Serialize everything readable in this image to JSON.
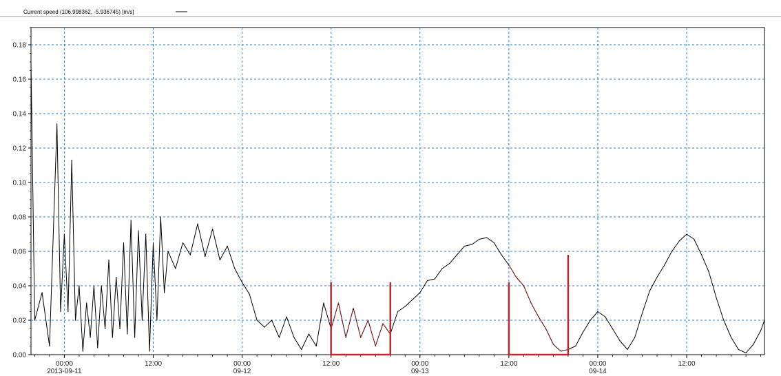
{
  "legend": {
    "label": "Current speed (106.998362, -5.936745) [m/s]",
    "line_color": "#000000"
  },
  "colors": {
    "series": "#000000",
    "highlight": "#c0282d",
    "grid": "#2a7fd4",
    "axis": "#000000"
  },
  "chart_data": {
    "type": "line",
    "title": "",
    "xlabel": "",
    "ylabel": "",
    "grid": true,
    "legend_placement": "top-left",
    "xlim": [
      "2013-09-10 19:30",
      "2013-09-14 22:30"
    ],
    "ylim": [
      0,
      0.19
    ],
    "y_ticks": [
      0.0,
      0.02,
      0.04,
      0.06,
      0.08,
      0.1,
      0.12,
      0.14,
      0.16,
      0.18
    ],
    "y_tick_labels": [
      "0.00",
      "0.02",
      "0.04",
      "0.06",
      "0.08",
      "0.10",
      "0.12",
      "0.14",
      "0.16",
      "0.18"
    ],
    "x_ticks": [
      {
        "t": "2013-09-11 00:00",
        "line1": "00:00",
        "line2": "2013-09-11"
      },
      {
        "t": "2013-09-11 12:00",
        "line1": "12:00",
        "line2": ""
      },
      {
        "t": "2013-09-12 00:00",
        "line1": "00:00",
        "line2": "09-12"
      },
      {
        "t": "2013-09-12 12:00",
        "line1": "12:00",
        "line2": ""
      },
      {
        "t": "2013-09-13 00:00",
        "line1": "00:00",
        "line2": "09-13"
      },
      {
        "t": "2013-09-13 12:00",
        "line1": "12:00",
        "line2": ""
      },
      {
        "t": "2013-09-14 00:00",
        "line1": "00:00",
        "line2": "09-14"
      },
      {
        "t": "2013-09-14 12:00",
        "line1": "12:00",
        "line2": ""
      }
    ],
    "series": [
      {
        "color": "#000000",
        "points": [
          [
            "2013-09-10 19:30",
            0.17
          ],
          [
            "2013-09-10 20:00",
            0.02
          ],
          [
            "2013-09-10 21:00",
            0.036
          ],
          [
            "2013-09-10 22:00",
            0.005
          ],
          [
            "2013-09-10 23:00",
            0.134
          ],
          [
            "2013-09-10 23:30",
            0.025
          ],
          [
            "2013-09-11 00:00",
            0.07
          ],
          [
            "2013-09-11 00:30",
            0.025
          ],
          [
            "2013-09-11 01:00",
            0.113
          ],
          [
            "2013-09-11 01:30",
            0.02
          ],
          [
            "2013-09-11 02:00",
            0.04
          ],
          [
            "2013-09-11 02:30",
            0.002
          ],
          [
            "2013-09-11 03:00",
            0.03
          ],
          [
            "2013-09-11 03:30",
            0.01
          ],
          [
            "2013-09-11 04:00",
            0.04
          ],
          [
            "2013-09-11 04:30",
            0.004
          ],
          [
            "2013-09-11 05:00",
            0.04
          ],
          [
            "2013-09-11 05:30",
            0.015
          ],
          [
            "2013-09-11 06:00",
            0.055
          ],
          [
            "2013-09-11 06:30",
            0.01
          ],
          [
            "2013-09-11 07:00",
            0.045
          ],
          [
            "2013-09-11 07:30",
            0.015
          ],
          [
            "2013-09-11 08:00",
            0.065
          ],
          [
            "2013-09-11 08:30",
            0.012
          ],
          [
            "2013-09-11 09:00",
            0.078
          ],
          [
            "2013-09-11 09:30",
            0.01
          ],
          [
            "2013-09-11 10:00",
            0.072
          ],
          [
            "2013-09-11 10:30",
            0.02
          ],
          [
            "2013-09-11 11:00",
            0.07
          ],
          [
            "2013-09-11 11:30",
            0.002
          ],
          [
            "2013-09-11 12:00",
            0.065
          ],
          [
            "2013-09-11 12:30",
            0.02
          ],
          [
            "2013-09-11 13:00",
            0.08
          ],
          [
            "2013-09-11 13:30",
            0.036
          ],
          [
            "2013-09-11 14:00",
            0.06
          ],
          [
            "2013-09-11 15:00",
            0.05
          ],
          [
            "2013-09-11 16:00",
            0.065
          ],
          [
            "2013-09-11 17:00",
            0.058
          ],
          [
            "2013-09-11 18:00",
            0.076
          ],
          [
            "2013-09-11 19:00",
            0.057
          ],
          [
            "2013-09-11 20:00",
            0.073
          ],
          [
            "2013-09-11 21:00",
            0.055
          ],
          [
            "2013-09-11 22:00",
            0.063
          ],
          [
            "2013-09-11 23:00",
            0.05
          ],
          [
            "2013-09-12 00:00",
            0.042
          ],
          [
            "2013-09-12 01:00",
            0.035
          ],
          [
            "2013-09-12 02:00",
            0.02
          ],
          [
            "2013-09-12 03:00",
            0.016
          ],
          [
            "2013-09-12 04:00",
            0.02
          ],
          [
            "2013-09-12 05:00",
            0.01
          ],
          [
            "2013-09-12 06:00",
            0.022
          ],
          [
            "2013-09-12 07:00",
            0.01
          ],
          [
            "2013-09-12 08:00",
            0.003
          ],
          [
            "2013-09-12 09:00",
            0.012
          ],
          [
            "2013-09-12 10:00",
            0.005
          ],
          [
            "2013-09-12 11:00",
            0.03
          ],
          [
            "2013-09-12 12:00",
            0.015
          ],
          [
            "2013-09-12 13:00",
            0.03
          ],
          [
            "2013-09-12 14:00",
            0.01
          ],
          [
            "2013-09-12 15:00",
            0.027
          ],
          [
            "2013-09-12 16:00",
            0.01
          ],
          [
            "2013-09-12 17:00",
            0.02
          ],
          [
            "2013-09-12 18:00",
            0.005
          ],
          [
            "2013-09-12 19:00",
            0.018
          ],
          [
            "2013-09-12 20:00",
            0.012
          ],
          [
            "2013-09-12 21:00",
            0.025
          ],
          [
            "2013-09-12 22:00",
            0.028
          ],
          [
            "2013-09-12 23:00",
            0.032
          ],
          [
            "2013-09-13 00:00",
            0.036
          ],
          [
            "2013-09-13 01:00",
            0.043
          ],
          [
            "2013-09-13 02:00",
            0.044
          ],
          [
            "2013-09-13 03:00",
            0.05
          ],
          [
            "2013-09-13 04:00",
            0.053
          ],
          [
            "2013-09-13 05:00",
            0.058
          ],
          [
            "2013-09-13 06:00",
            0.063
          ],
          [
            "2013-09-13 07:00",
            0.064
          ],
          [
            "2013-09-13 08:00",
            0.067
          ],
          [
            "2013-09-13 09:00",
            0.068
          ],
          [
            "2013-09-13 10:00",
            0.065
          ],
          [
            "2013-09-13 11:00",
            0.058
          ],
          [
            "2013-09-13 12:00",
            0.052
          ],
          [
            "2013-09-13 13:00",
            0.045
          ],
          [
            "2013-09-13 14:00",
            0.04
          ],
          [
            "2013-09-13 15:00",
            0.03
          ],
          [
            "2013-09-13 16:00",
            0.022
          ],
          [
            "2013-09-13 17:00",
            0.015
          ],
          [
            "2013-09-13 18:00",
            0.006
          ],
          [
            "2013-09-13 19:00",
            0.002
          ],
          [
            "2013-09-13 20:00",
            0.003
          ],
          [
            "2013-09-13 21:00",
            0.005
          ],
          [
            "2013-09-13 22:00",
            0.013
          ],
          [
            "2013-09-13 23:00",
            0.02
          ],
          [
            "2013-09-14 00:00",
            0.025
          ],
          [
            "2013-09-14 01:00",
            0.022
          ],
          [
            "2013-09-14 02:00",
            0.015
          ],
          [
            "2013-09-14 03:00",
            0.008
          ],
          [
            "2013-09-14 04:00",
            0.003
          ],
          [
            "2013-09-14 05:00",
            0.01
          ],
          [
            "2013-09-14 06:00",
            0.024
          ],
          [
            "2013-09-14 07:00",
            0.037
          ],
          [
            "2013-09-14 08:00",
            0.045
          ],
          [
            "2013-09-14 09:00",
            0.052
          ],
          [
            "2013-09-14 10:00",
            0.06
          ],
          [
            "2013-09-14 11:00",
            0.066
          ],
          [
            "2013-09-14 12:00",
            0.07
          ],
          [
            "2013-09-14 13:00",
            0.067
          ],
          [
            "2013-09-14 14:00",
            0.058
          ],
          [
            "2013-09-14 15:00",
            0.048
          ],
          [
            "2013-09-14 16:00",
            0.033
          ],
          [
            "2013-09-14 17:00",
            0.02
          ],
          [
            "2013-09-14 18:00",
            0.01
          ],
          [
            "2013-09-14 19:00",
            0.003
          ],
          [
            "2013-09-14 20:00",
            0.001
          ],
          [
            "2013-09-14 21:00",
            0.006
          ],
          [
            "2013-09-14 22:00",
            0.014
          ],
          [
            "2013-09-14 22:30",
            0.02
          ]
        ]
      }
    ],
    "highlight_regions": [
      {
        "color": "#c0282d",
        "start": "2013-09-12 12:00",
        "end": "2013-09-12 20:00",
        "edge_values": [
          0.042,
          0.042
        ]
      },
      {
        "color": "#c0282d",
        "start": "2013-09-13 12:00",
        "end": "2013-09-13 20:00",
        "edge_values": [
          0.042,
          0.058
        ]
      }
    ]
  }
}
